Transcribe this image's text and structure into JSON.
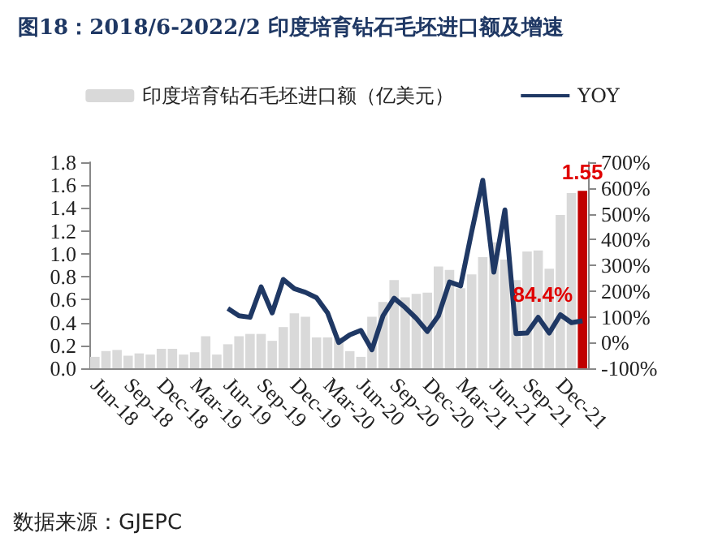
{
  "chart_data": {
    "type": "bar",
    "title": "图18：2018/6-2022/2 印度培育钻石毛坯进口额及增速",
    "categories": [
      "Jun-18",
      null,
      null,
      "Sep-18",
      null,
      null,
      "Dec-18",
      null,
      null,
      "Mar-19",
      null,
      null,
      "Jun-19",
      null,
      null,
      "Sep-19",
      null,
      null,
      "Dec-19",
      null,
      null,
      "Mar-20",
      null,
      null,
      "Jun-20",
      null,
      null,
      "Sep-20",
      null,
      null,
      "Dec-20",
      null,
      null,
      "Mar-21",
      null,
      null,
      "Jun-21",
      null,
      null,
      "Sep-21",
      null,
      null,
      "Dec-21",
      null,
      null
    ],
    "series": [
      {
        "name": "印度培育钻石毛坯进口额（亿美元）",
        "color": "#d9d9d9",
        "colors": [
          "#d9d9d9",
          "#d9d9d9",
          "#d9d9d9",
          "#d9d9d9",
          "#d9d9d9",
          "#d9d9d9",
          "#d9d9d9",
          "#d9d9d9",
          "#d9d9d9",
          "#d9d9d9",
          "#d9d9d9",
          "#d9d9d9",
          "#d9d9d9",
          "#d9d9d9",
          "#d9d9d9",
          "#d9d9d9",
          "#d9d9d9",
          "#d9d9d9",
          "#d9d9d9",
          "#d9d9d9",
          "#d9d9d9",
          "#d9d9d9",
          "#d9d9d9",
          "#d9d9d9",
          "#d9d9d9",
          "#d9d9d9",
          "#d9d9d9",
          "#d9d9d9",
          "#d9d9d9",
          "#d9d9d9",
          "#d9d9d9",
          "#d9d9d9",
          "#d9d9d9",
          "#d9d9d9",
          "#d9d9d9",
          "#d9d9d9",
          "#d9d9d9",
          "#d9d9d9",
          "#d9d9d9",
          "#d9d9d9",
          "#d9d9d9",
          "#d9d9d9",
          "#d9d9d9",
          "#d9d9d9",
          "#c00000"
        ],
        "values": [
          0.1,
          0.15,
          0.16,
          0.11,
          0.13,
          0.12,
          0.17,
          0.17,
          0.12,
          0.14,
          0.28,
          0.12,
          0.21,
          0.28,
          0.3,
          0.3,
          0.24,
          0.36,
          0.48,
          0.45,
          0.27,
          0.27,
          0.27,
          0.15,
          0.1,
          0.45,
          0.58,
          0.77,
          0.62,
          0.65,
          0.66,
          0.89,
          0.86,
          0.7,
          0.82,
          0.97,
          1.1,
          0.95,
          0.77,
          1.02,
          1.03,
          0.87,
          1.34,
          1.53,
          1.55
        ],
        "value_labels": [
          null,
          null,
          null,
          null,
          null,
          null,
          null,
          null,
          null,
          null,
          null,
          null,
          null,
          null,
          null,
          null,
          null,
          null,
          null,
          null,
          null,
          null,
          null,
          null,
          null,
          null,
          null,
          null,
          null,
          null,
          null,
          null,
          null,
          null,
          null,
          null,
          null,
          null,
          null,
          null,
          null,
          null,
          null,
          null,
          "1.55"
        ]
      },
      {
        "name": "YOY",
        "type": "line",
        "axis": "y2",
        "color": "#1f3864",
        "values": [
          null,
          null,
          null,
          null,
          null,
          null,
          null,
          null,
          null,
          null,
          null,
          null,
          132,
          104,
          98,
          216,
          115,
          245,
          209,
          195,
          174,
          115,
          0,
          30,
          47,
          -28,
          104,
          172,
          136,
          94,
          43,
          104,
          235,
          220,
          430,
          630,
          273,
          515,
          35,
          37,
          98,
          37,
          108,
          77,
          84.4
        ],
        "value_labels": [
          null,
          null,
          null,
          null,
          null,
          null,
          null,
          null,
          null,
          null,
          null,
          null,
          null,
          null,
          null,
          null,
          null,
          null,
          null,
          null,
          null,
          null,
          null,
          null,
          null,
          null,
          null,
          null,
          null,
          null,
          null,
          null,
          null,
          null,
          null,
          null,
          null,
          null,
          null,
          null,
          null,
          null,
          null,
          null,
          "84.4%"
        ]
      }
    ],
    "ylim": [
      0,
      1.8
    ],
    "yticks": [
      {
        "value": 0,
        "label": "0.0"
      },
      0.2,
      0.4,
      0.6,
      0.8,
      {
        "value": 1,
        "label": "1.0"
      },
      1.2,
      1.4,
      1.6,
      1.8
    ],
    "y2lim": [
      -100,
      700
    ],
    "y2ticks": [
      {
        "value": -100,
        "label": "-100%"
      },
      {
        "value": 0,
        "label": "0%"
      },
      {
        "value": 100,
        "label": "100%"
      },
      {
        "value": 200,
        "label": "200%"
      },
      {
        "value": 300,
        "label": "300%"
      },
      {
        "value": 400,
        "label": "400%"
      },
      {
        "value": 500,
        "label": "500%"
      },
      {
        "value": 600,
        "label": "600%"
      },
      {
        "value": 700,
        "label": "700%"
      }
    ],
    "grid": false,
    "legend": "top",
    "marker": "none",
    "line_style": "solid",
    "annotations": [
      "数据来源：GJEPC"
    ]
  }
}
